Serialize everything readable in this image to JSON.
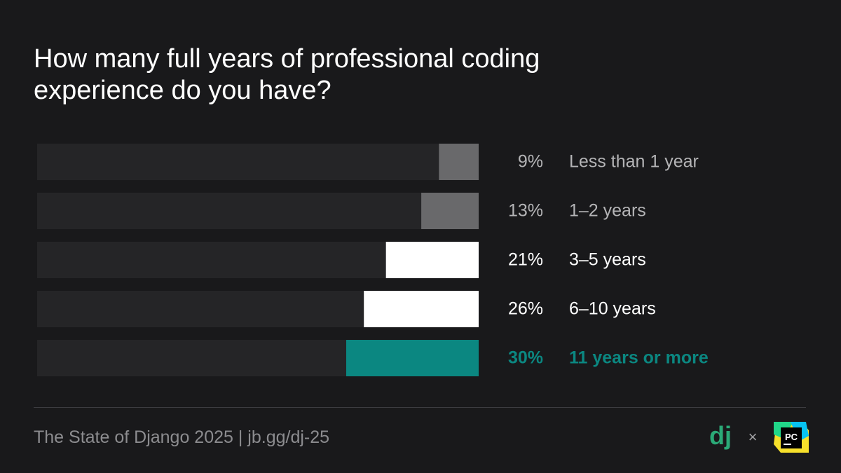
{
  "title_lines": [
    "How many full years of professional coding",
    "experience do you have?"
  ],
  "footer": {
    "text": "The State of Django 2025 | jb.gg/dj-25"
  },
  "logos": {
    "django": "dj",
    "separator": "×",
    "pycharm": "PC"
  },
  "colors": {
    "background": "#19191b",
    "track": "#252527",
    "gray": "#69696b",
    "white": "#ffffff",
    "highlight": "#0b8781"
  },
  "chart_data": {
    "type": "bar",
    "orientation": "horizontal",
    "unit": "%",
    "xlim": [
      0,
      100
    ],
    "categories": [
      "Less than 1 year",
      "1–2 years",
      "3–5 years",
      "6–10 years",
      "11 years or more"
    ],
    "values": [
      9,
      13,
      21,
      26,
      30
    ],
    "value_labels": [
      "9%",
      "13%",
      "21%",
      "26%",
      "30%"
    ],
    "bar_colors": [
      "#69696b",
      "#69696b",
      "#ffffff",
      "#ffffff",
      "#0b8781"
    ],
    "label_colors": [
      "#b4b4b6",
      "#b4b4b6",
      "#ffffff",
      "#ffffff",
      "#0b8781"
    ],
    "highlighted": "11 years or more",
    "grid": false,
    "legend": false
  }
}
